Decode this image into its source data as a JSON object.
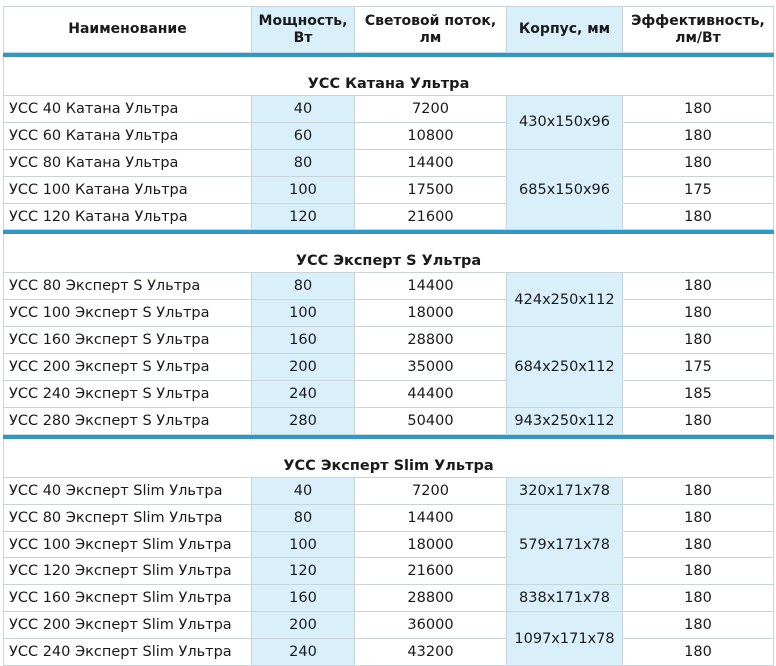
{
  "table": {
    "headers": {
      "name": "Наименование",
      "power": "Мощность, Вт",
      "flux": "Световой поток, лм",
      "housing": "Корпус, мм",
      "efficiency": "Эффективность, лм/Вт"
    },
    "groups": [
      {
        "title": "УСС Катана Ультра",
        "rows": [
          {
            "name": "УСС 40 Катана Ультра",
            "power": "40",
            "flux": "7200",
            "efficiency": "180"
          },
          {
            "name": "УСС 60 Катана Ультра",
            "power": "60",
            "flux": "10800",
            "efficiency": "180"
          },
          {
            "name": "УСС 80 Катана Ультра",
            "power": "80",
            "flux": "14400",
            "efficiency": "180"
          },
          {
            "name": "УСС 100 Катана Ультра",
            "power": "100",
            "flux": "17500",
            "efficiency": "175"
          },
          {
            "name": "УСС 120 Катана Ультра",
            "power": "120",
            "flux": "21600",
            "efficiency": "180"
          }
        ],
        "housing": [
          {
            "value": "430x150x96",
            "rows": 2
          },
          {
            "value": "685x150x96",
            "rows": 3
          }
        ]
      },
      {
        "title": "УСС Эксперт S Ультра",
        "rows": [
          {
            "name": "УСС 80 Эксперт S Ультра",
            "power": "80",
            "flux": "14400",
            "efficiency": "180"
          },
          {
            "name": "УСС 100 Эксперт S Ультра",
            "power": "100",
            "flux": "18000",
            "efficiency": "180"
          },
          {
            "name": "УСС 160 Эксперт S Ультра",
            "power": "160",
            "flux": "28800",
            "efficiency": "180"
          },
          {
            "name": "УСС 200 Эксперт S Ультра",
            "power": "200",
            "flux": "35000",
            "efficiency": "175"
          },
          {
            "name": "УСС 240 Эксперт S Ультра",
            "power": "240",
            "flux": "44400",
            "efficiency": "185"
          },
          {
            "name": "УСС 280 Эксперт S Ультра",
            "power": "280",
            "flux": "50400",
            "efficiency": "180"
          }
        ],
        "housing": [
          {
            "value": "424x250x112",
            "rows": 2
          },
          {
            "value": "684x250x112",
            "rows": 3
          },
          {
            "value": "943x250x112",
            "rows": 1
          }
        ]
      },
      {
        "title": "УСС Эксперт Slim Ультра",
        "rows": [
          {
            "name": "УСС 40 Эксперт Slim Ультра",
            "power": "40",
            "flux": "7200",
            "efficiency": "180"
          },
          {
            "name": "УСС 80 Эксперт Slim Ультра",
            "power": "80",
            "flux": "14400",
            "efficiency": "180"
          },
          {
            "name": "УСС 100 Эксперт Slim Ультра",
            "power": "100",
            "flux": "18000",
            "efficiency": "180"
          },
          {
            "name": "УСС 120 Эксперт Slim Ультра",
            "power": "120",
            "flux": "21600",
            "efficiency": "180"
          },
          {
            "name": "УСС 160 Эксперт Slim Ультра",
            "power": "160",
            "flux": "28800",
            "efficiency": "180"
          },
          {
            "name": "УСС 200 Эксперт Slim Ультра",
            "power": "200",
            "flux": "36000",
            "efficiency": "180"
          },
          {
            "name": "УСС 240 Эксперт Slim Ультра",
            "power": "240",
            "flux": "43200",
            "efficiency": "180"
          }
        ],
        "housing": [
          {
            "value": "320x171x78",
            "rows": 1
          },
          {
            "value": "579x171x78",
            "rows": 3
          },
          {
            "value": "838x171x78",
            "rows": 1
          },
          {
            "value": "1097x171x78",
            "rows": 2
          }
        ]
      }
    ]
  },
  "colors": {
    "highlight": "#d9f0fb",
    "border": "#c9d4da",
    "separator": "#2e98c9"
  }
}
